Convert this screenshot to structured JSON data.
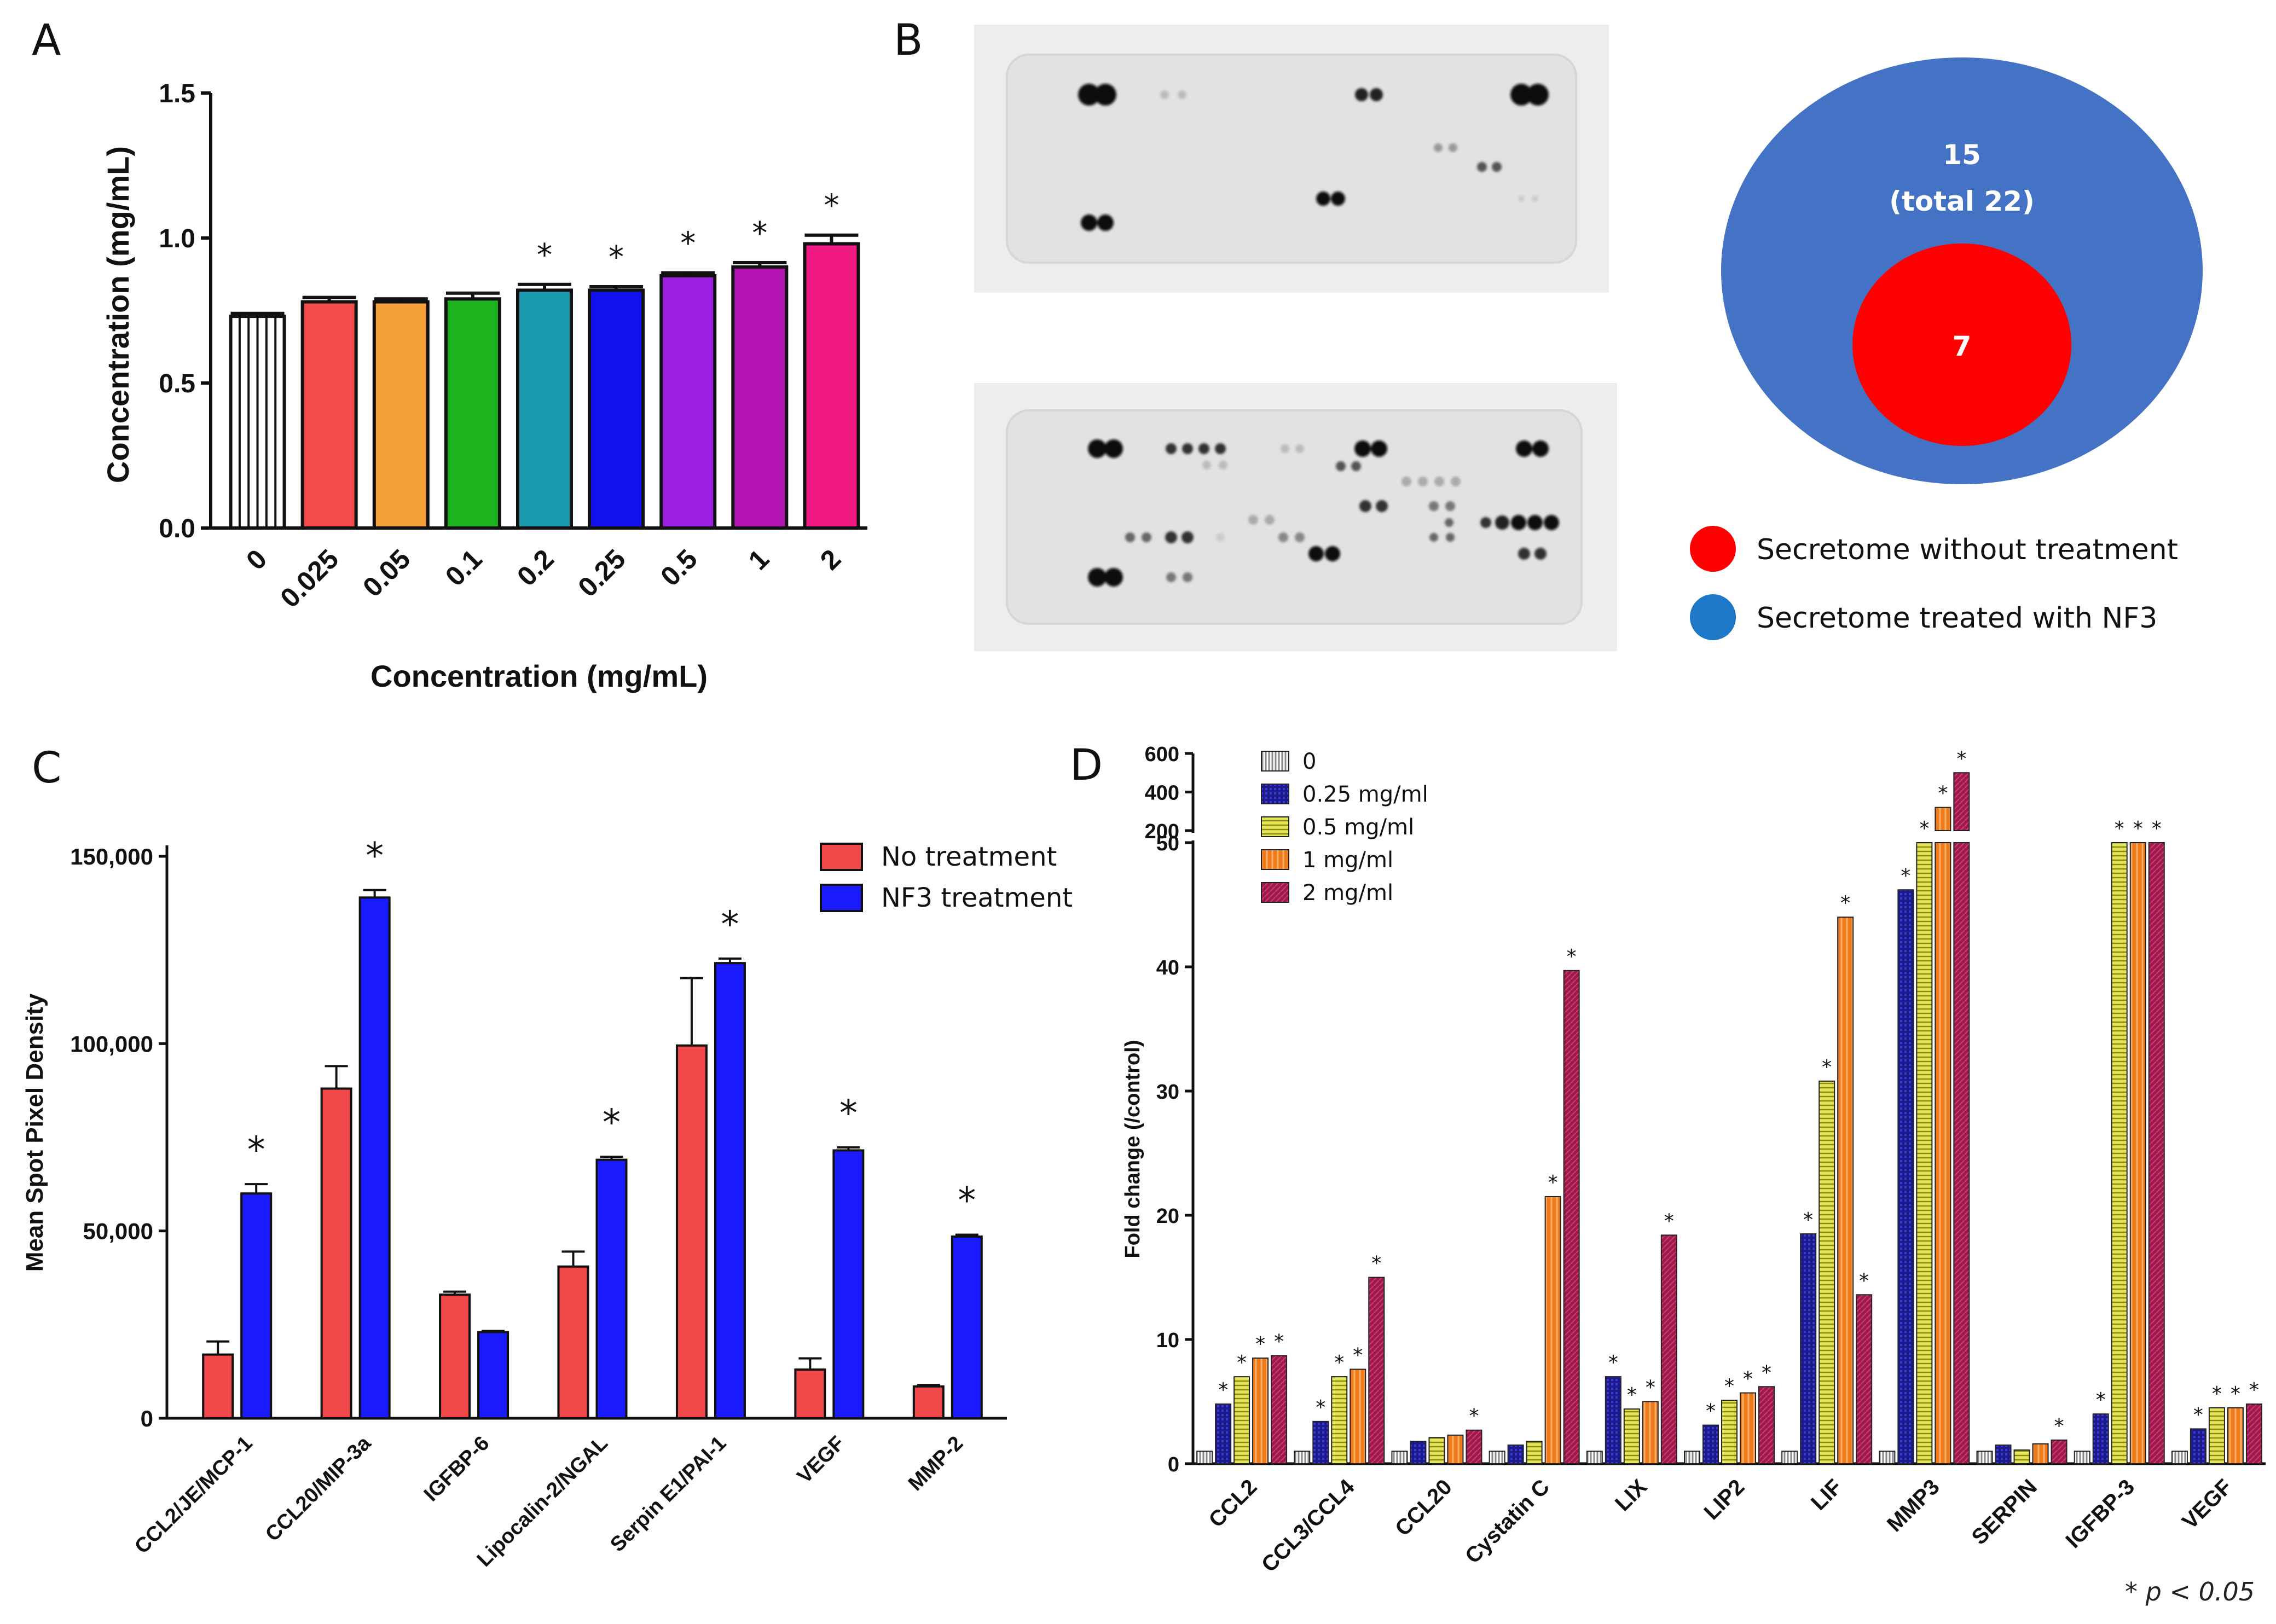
{
  "panels": {
    "A": "A",
    "B": "B",
    "C": "C",
    "D": "D"
  },
  "panel_b": {
    "venn_outer_label_1": "15",
    "venn_outer_label_2": "(total 22)",
    "venn_inner_label": "7",
    "legend": [
      {
        "label": "Secretome  without  treatment",
        "color": "#ff0000"
      },
      {
        "label": "Secretome  treated  with  NF3",
        "color": "#1e78c8"
      }
    ],
    "colors": {
      "venn_outer": "#4472c4",
      "venn_inner": "#ff0000"
    }
  },
  "footnote": "* p < 0.05",
  "chart_data": [
    {
      "id": "A",
      "type": "bar",
      "categories": [
        "0",
        "0.025",
        "0.05",
        "0.1",
        "0.2",
        "0.25",
        "0.5",
        "1",
        "2"
      ],
      "values": [
        0.73,
        0.78,
        0.78,
        0.79,
        0.82,
        0.82,
        0.87,
        0.9,
        0.98
      ],
      "errors": [
        0.01,
        0.015,
        0.01,
        0.02,
        0.02,
        0.012,
        0.01,
        0.015,
        0.03
      ],
      "significant": [
        false,
        false,
        false,
        false,
        true,
        true,
        true,
        true,
        true
      ],
      "colors": [
        "#ffffff",
        "#f24b4b",
        "#f5a03a",
        "#1fb31f",
        "#1a9bb0",
        "#1111ee",
        "#9b1fe0",
        "#b514b5",
        "#f01883"
      ],
      "title": "",
      "xlabel": "Concentration (mg/mL)",
      "ylabel": "Concentration (mg/mL)",
      "yticks": [
        "0.0",
        "0.5",
        "1.0",
        "1.5"
      ],
      "ylim": [
        0,
        1.5
      ],
      "star": "*"
    },
    {
      "id": "C",
      "type": "bar",
      "categories": [
        "CCL2/JE/MCP-1",
        "CCL20/MIP-3a",
        "IGFBP-6",
        "Lipocalin-2/NGAL",
        "Serpin E1/PAI-1",
        "VEGF",
        "MMP-2"
      ],
      "series": [
        {
          "name": "No treatment",
          "color": "#f04848",
          "values": [
            17000,
            88000,
            33000,
            40500,
            99500,
            13000,
            8500
          ],
          "errors": [
            3500,
            6000,
            800,
            4000,
            18000,
            3000,
            400
          ]
        },
        {
          "name": "NF3 treatment",
          "color": "#1a1aff",
          "values": [
            60000,
            139000,
            23000,
            69000,
            121500,
            71500,
            48500
          ],
          "errors": [
            2500,
            2000,
            300,
            800,
            1200,
            800,
            500
          ]
        }
      ],
      "significant": [
        true,
        true,
        false,
        true,
        true,
        true,
        true
      ],
      "ylabel": "Mean Spot Pixel Density",
      "yticks": [
        "0",
        "50,000",
        "100,000",
        "150,000"
      ],
      "ylim": [
        0,
        150000
      ],
      "legend_position": "top-right",
      "star": "*"
    },
    {
      "id": "D",
      "type": "bar",
      "categories": [
        "CCL2",
        "CCL3/CCL4",
        "CCL20",
        "Cystatin C",
        "LIX",
        "LIP2",
        "LIF",
        "MMP3",
        "SERPIN",
        "IGFBP-3",
        "VEGF"
      ],
      "series": [
        {
          "name": "0",
          "color": "#f2f2f2",
          "values": [
            1,
            1,
            1,
            1,
            1,
            1,
            1,
            1,
            1,
            1,
            1
          ]
        },
        {
          "name": "0.25 mg/ml",
          "color": "#1a1a8c",
          "values": [
            4.8,
            3.4,
            1.8,
            1.5,
            7.0,
            3.1,
            18.5,
            46.2,
            1.5,
            4.0,
            2.8
          ]
        },
        {
          "name": "0.5 mg/ml",
          "color": "#d4d43a",
          "values": [
            7.0,
            7.0,
            2.1,
            1.8,
            4.4,
            5.1,
            30.8,
            50,
            1.1,
            50,
            4.5
          ]
        },
        {
          "name": "1 mg/ml",
          "color": "#f07a1a",
          "values": [
            8.5,
            7.6,
            2.3,
            21.5,
            5.0,
            5.7,
            44.0,
            320,
            1.6,
            50,
            4.5
          ]
        },
        {
          "name": "2 mg/ml",
          "color": "#a0194a",
          "values": [
            8.7,
            15.0,
            2.7,
            39.7,
            18.4,
            6.2,
            13.6,
            500,
            1.9,
            50,
            4.8
          ]
        }
      ],
      "significant_stars": [
        [
          false,
          true,
          true,
          true,
          true
        ],
        [
          false,
          true,
          true,
          true,
          true
        ],
        [
          false,
          false,
          false,
          false,
          true
        ],
        [
          false,
          false,
          false,
          true,
          true
        ],
        [
          false,
          true,
          true,
          true,
          true
        ],
        [
          false,
          true,
          true,
          true,
          true
        ],
        [
          false,
          true,
          true,
          true,
          true
        ],
        [
          false,
          true,
          true,
          true,
          true
        ],
        [
          false,
          false,
          false,
          false,
          true
        ],
        [
          false,
          true,
          true,
          true,
          true
        ],
        [
          false,
          true,
          true,
          true,
          true
        ]
      ],
      "ylabel": "Fold change (/control)",
      "yticks_lower": [
        "0",
        "10",
        "20",
        "30",
        "40",
        "50"
      ],
      "yticks_upper": [
        "200",
        "400",
        "600"
      ],
      "ylim_lower": [
        0,
        50
      ],
      "ylim_upper": [
        200,
        600
      ],
      "axis_break": true,
      "legend_position": "top-left",
      "star": "*"
    }
  ]
}
